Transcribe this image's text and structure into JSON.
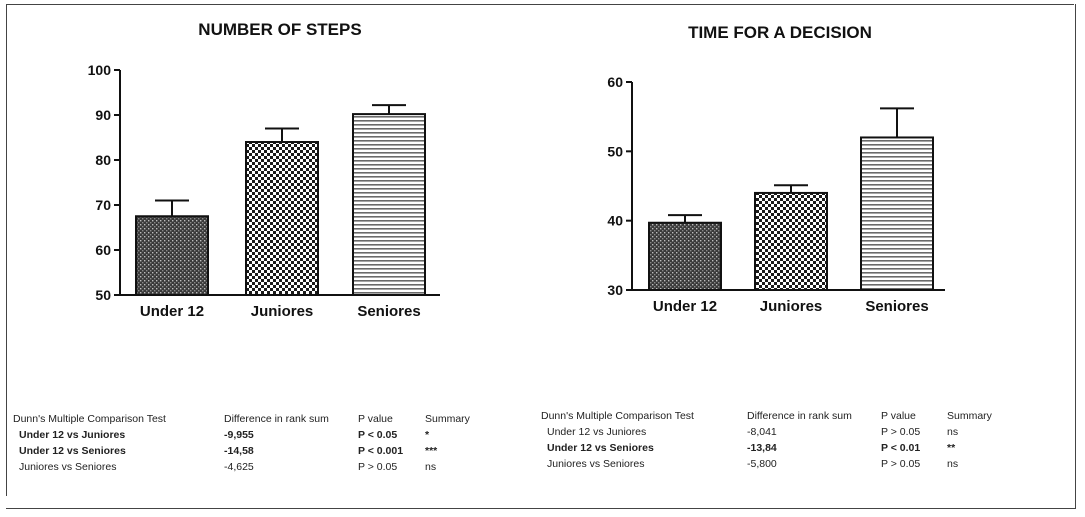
{
  "chart_data": [
    {
      "type": "bar",
      "title": "NUMBER OF STEPS",
      "xlabel": "",
      "ylabel": "",
      "categories": [
        "Under 12",
        "Juniores",
        "Seniores"
      ],
      "values": [
        67.5,
        84,
        90.2
      ],
      "error_upper": [
        71,
        87,
        92.2
      ],
      "ylim": [
        50,
        100
      ],
      "yticks": [
        "50",
        "60",
        "70",
        "80",
        "90",
        "100"
      ],
      "patterns": [
        "dense-dots",
        "checker",
        "horizontal-lines"
      ]
    },
    {
      "type": "bar",
      "title": "TIME FOR A DECISION",
      "xlabel": "",
      "ylabel": "",
      "categories": [
        "Under 12",
        "Juniores",
        "Seniores"
      ],
      "values": [
        39.7,
        44,
        52
      ],
      "error_upper": [
        40.8,
        45.1,
        56.2
      ],
      "ylim": [
        30,
        60
      ],
      "yticks": [
        "30",
        "40",
        "50",
        "60"
      ],
      "patterns": [
        "dense-dots",
        "checker",
        "horizontal-lines"
      ]
    }
  ],
  "tables": [
    {
      "header": [
        "Dunn's Multiple Comparison Test",
        "Difference in rank sum",
        "P value",
        "Summary"
      ],
      "rows": [
        {
          "cells": [
            "Under 12 vs Juniores",
            "-9,955",
            "P < 0.05",
            "*"
          ],
          "bold": true
        },
        {
          "cells": [
            "Under 12 vs Seniores",
            "-14,58",
            "P < 0.001",
            "***"
          ],
          "bold": true
        },
        {
          "cells": [
            "Juniores vs Seniores",
            "-4,625",
            "P > 0.05",
            "ns"
          ],
          "bold": false
        }
      ]
    },
    {
      "header": [
        "Dunn's Multiple Comparison Test",
        "Difference in rank sum",
        "P value",
        "Summary"
      ],
      "rows": [
        {
          "cells": [
            "Under 12 vs Juniores",
            "-8,041",
            "P > 0.05",
            "ns"
          ],
          "bold": false
        },
        {
          "cells": [
            "Under 12 vs Seniores",
            "-13,84",
            "P < 0.01",
            "**"
          ],
          "bold": true
        },
        {
          "cells": [
            "Juniores vs Seniores",
            "-5,800",
            "P > 0.05",
            "ns"
          ],
          "bold": false
        }
      ]
    }
  ]
}
